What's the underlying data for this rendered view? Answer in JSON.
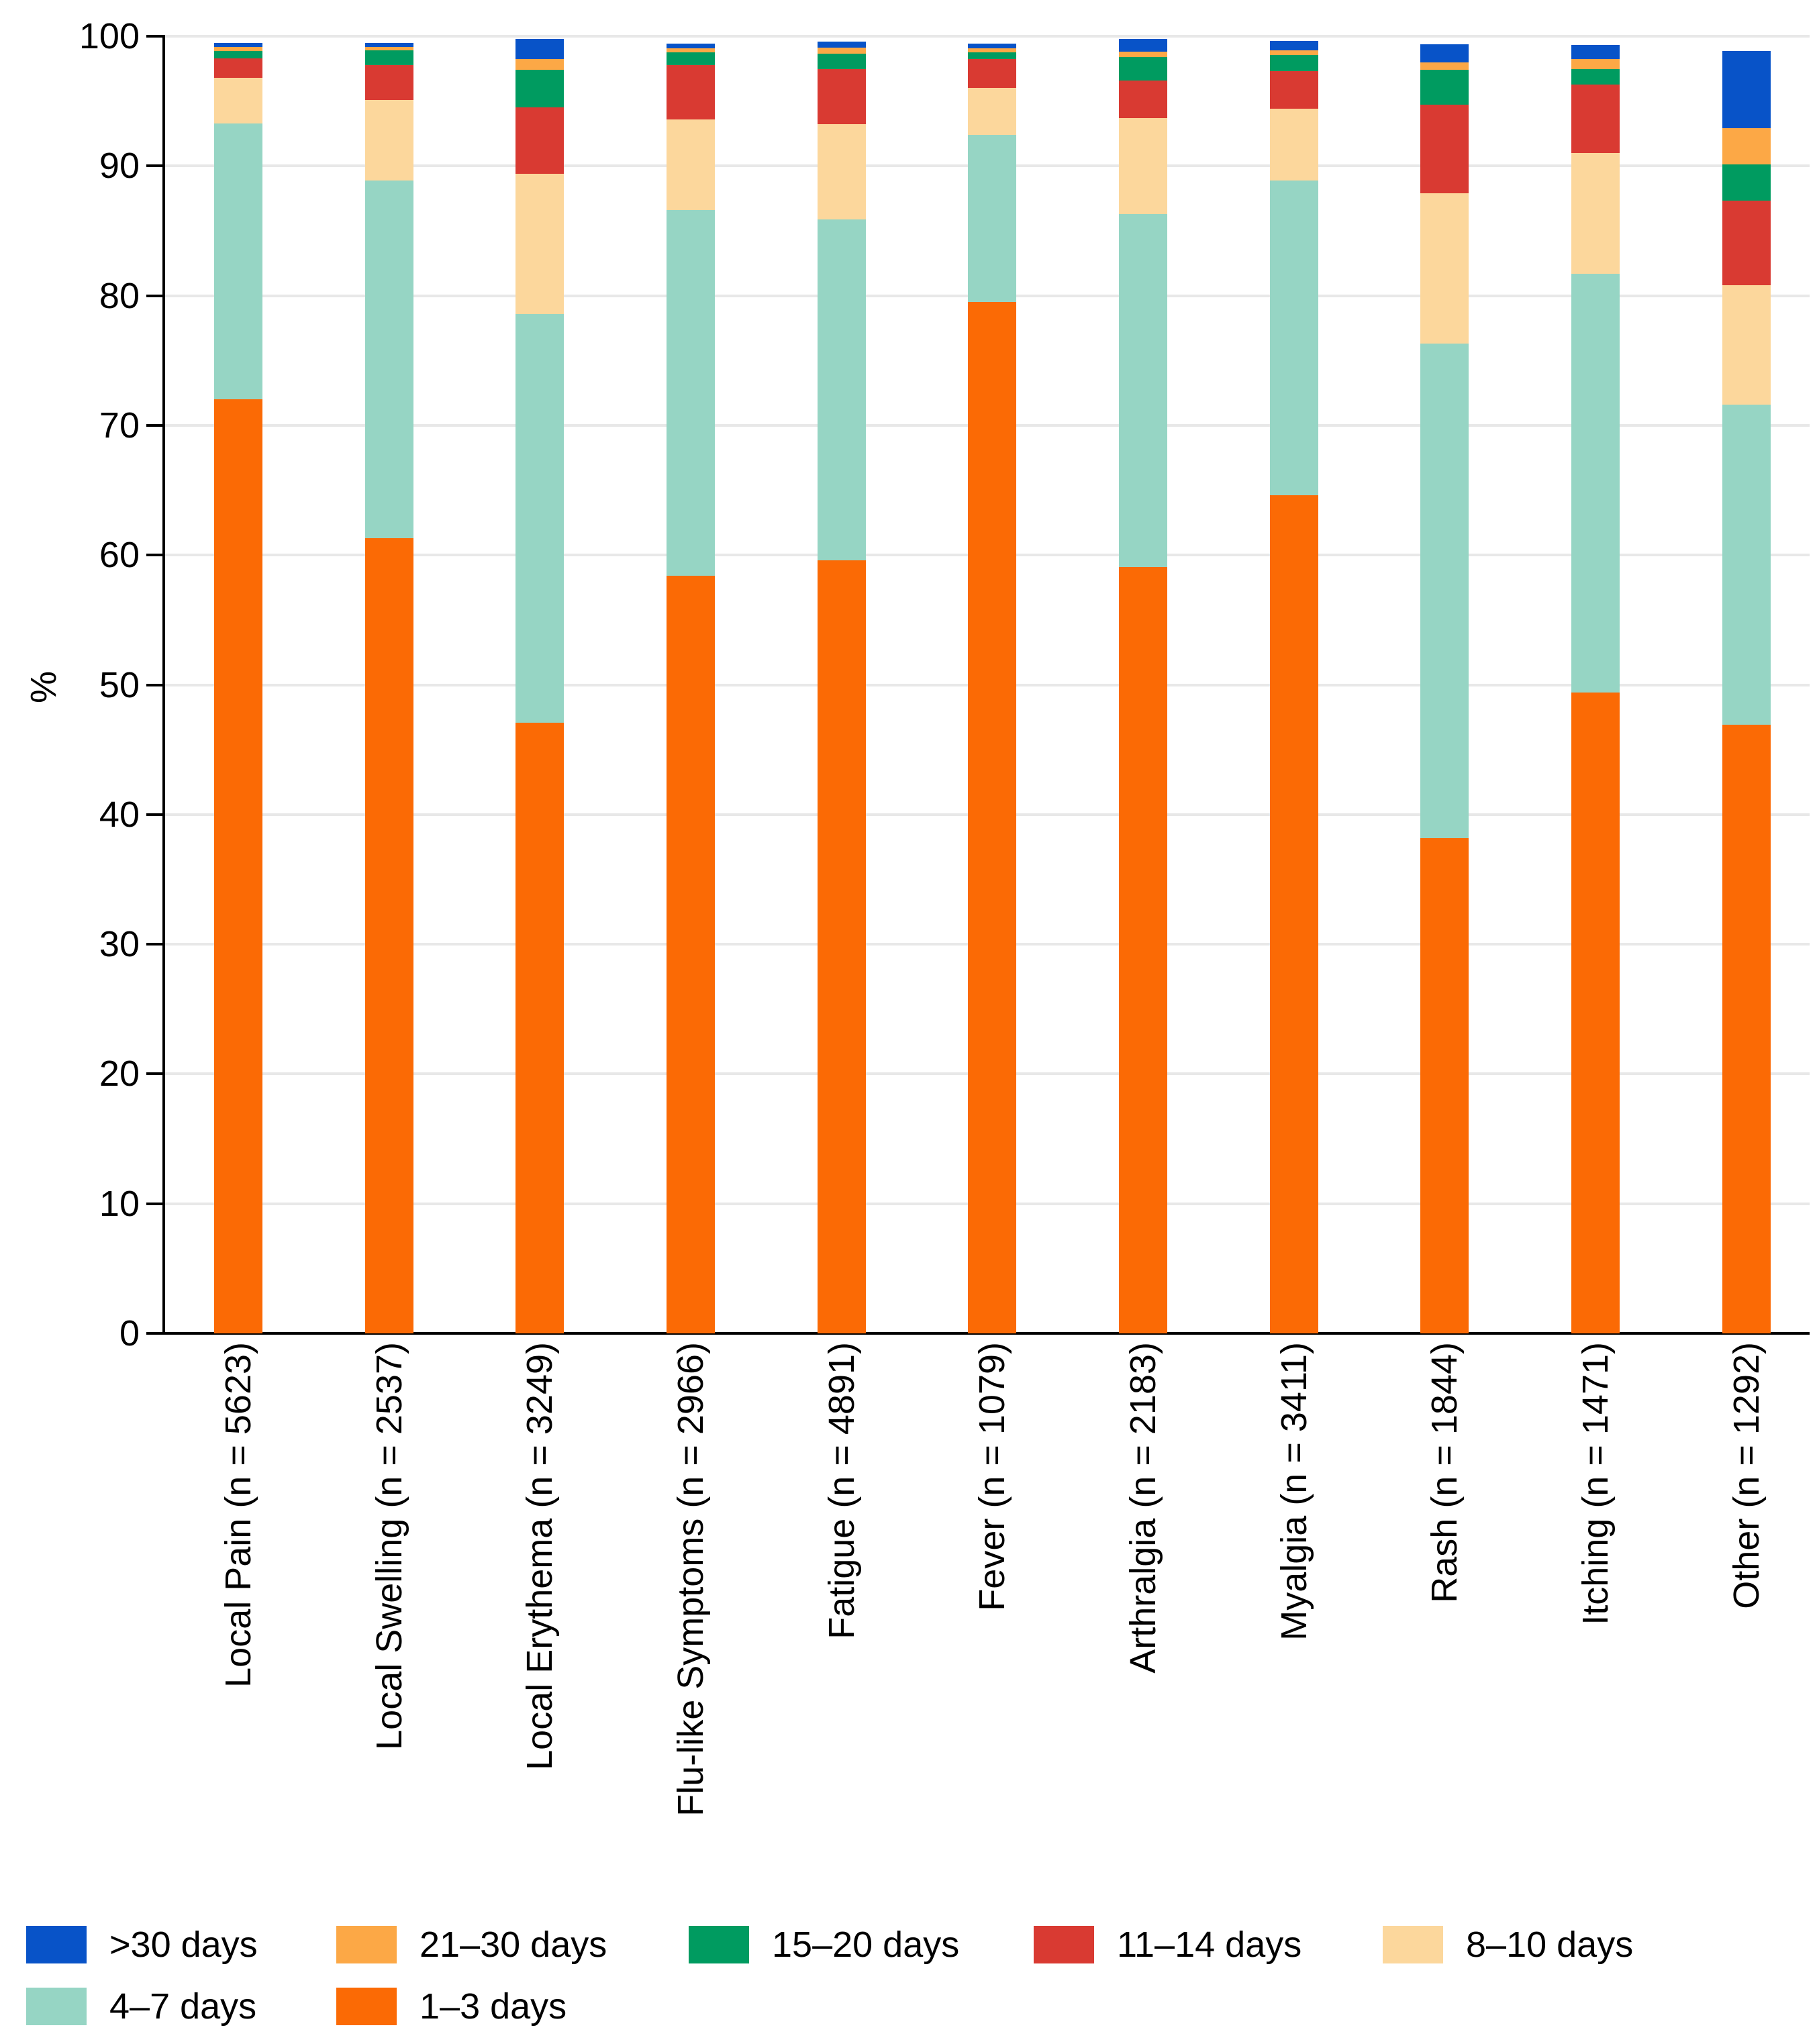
{
  "chart_data": {
    "type": "bar",
    "stacked": true,
    "title": "",
    "xlabel": "",
    "ylabel": "%",
    "ylim": [
      0,
      100
    ],
    "yticks": [
      0,
      10,
      20,
      30,
      40,
      50,
      60,
      70,
      80,
      90,
      100
    ],
    "grid": true,
    "legend_position": "bottom",
    "categories": [
      "Local Pain (n = 5623)",
      "Local Swelling (n = 2537)",
      "Local Erythema (n = 3249)",
      "Flu-like Symptoms (n = 2966)",
      "Fatigue (n = 4891)",
      "Fever (n = 1079)",
      "Arthralgia (n = 2183)",
      "Myalgia (n = 3411)",
      "Rash (n = 1844)",
      "Itching (n = 1471)",
      "Other (n = 1292)"
    ],
    "series": [
      {
        "name": "1–3 days",
        "color": "#FB6A05",
        "values": [
          72.0,
          61.3,
          47.1,
          58.4,
          59.6,
          79.5,
          59.1,
          64.6,
          38.2,
          49.4,
          46.9
        ]
      },
      {
        "name": "4–7 days",
        "color": "#96D5C4",
        "values": [
          21.3,
          27.6,
          31.5,
          28.2,
          26.3,
          12.9,
          27.2,
          24.3,
          38.1,
          32.3,
          24.7
        ]
      },
      {
        "name": "8–10 days",
        "color": "#FCD79C",
        "values": [
          3.5,
          6.2,
          10.8,
          7.0,
          7.3,
          3.6,
          7.4,
          5.5,
          11.6,
          9.3,
          9.2
        ]
      },
      {
        "name": "11–14 days",
        "color": "#D93A32",
        "values": [
          1.5,
          2.7,
          5.1,
          4.2,
          4.25,
          2.25,
          2.9,
          2.9,
          6.8,
          5.3,
          6.5
        ]
      },
      {
        "name": "15–20 days",
        "color": "#009B60",
        "values": [
          0.55,
          1.1,
          2.9,
          0.95,
          1.2,
          0.5,
          1.8,
          1.25,
          2.7,
          1.15,
          2.8
        ]
      },
      {
        "name": "21–30 days",
        "color": "#FCA846",
        "values": [
          0.3,
          0.27,
          0.85,
          0.3,
          0.48,
          0.3,
          0.4,
          0.35,
          0.6,
          0.8,
          2.8
        ]
      },
      {
        "name": ">30 days",
        "color": "#0853C8",
        "values": [
          0.35,
          0.33,
          1.55,
          0.4,
          0.45,
          0.38,
          1.0,
          0.75,
          1.4,
          1.1,
          5.95
        ]
      }
    ],
    "legend_rows": [
      [
        ">30 days",
        "21–30 days",
        "15–20 days",
        "11–14 days",
        "8–10 days"
      ],
      [
        "4–7 days",
        "1–3 days"
      ]
    ]
  }
}
